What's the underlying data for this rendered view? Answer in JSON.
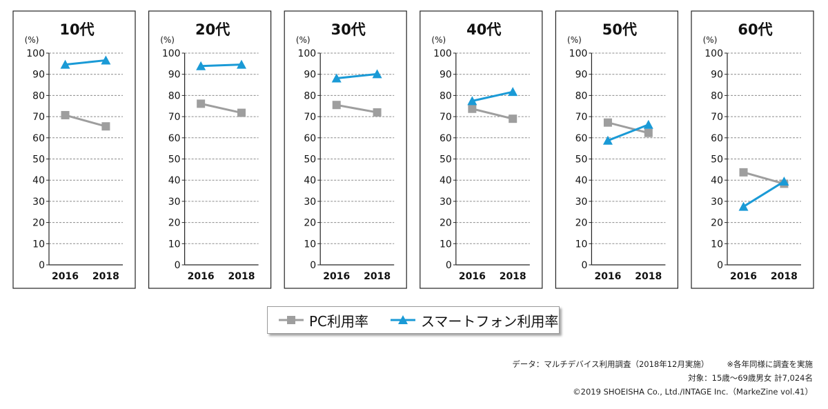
{
  "chart_data": {
    "type": "line",
    "y_unit": "(%)",
    "ylim": [
      0,
      100
    ],
    "yticks": [
      0,
      10,
      20,
      30,
      40,
      50,
      60,
      70,
      80,
      90,
      100
    ],
    "categories": [
      "2016",
      "2018"
    ],
    "grid": true,
    "legend_position": "bottom-center",
    "panels": [
      {
        "title": "10代",
        "series": [
          {
            "name": "PC利用率",
            "values": [
              70.7,
              65.4
            ]
          },
          {
            "name": "スマートフォン利用率",
            "values": [
              94.6,
              96.6
            ]
          }
        ]
      },
      {
        "title": "20代",
        "series": [
          {
            "name": "PC利用率",
            "values": [
              76.1,
              71.8
            ]
          },
          {
            "name": "スマートフォン利用率",
            "values": [
              93.9,
              94.6
            ]
          }
        ]
      },
      {
        "title": "30代",
        "series": [
          {
            "name": "PC利用率",
            "values": [
              75.5,
              72.0
            ]
          },
          {
            "name": "スマートフォン利用率",
            "values": [
              88.1,
              90.1
            ]
          }
        ]
      },
      {
        "title": "40代",
        "series": [
          {
            "name": "PC利用率",
            "values": [
              73.7,
              69.0
            ]
          },
          {
            "name": "スマートフォン利用率",
            "values": [
              77.4,
              81.7
            ]
          }
        ]
      },
      {
        "title": "50代",
        "series": [
          {
            "name": "PC利用率",
            "values": [
              67.2,
              62.3
            ]
          },
          {
            "name": "スマートフォン利用率",
            "values": [
              58.7,
              66.2
            ]
          }
        ]
      },
      {
        "title": "60代",
        "series": [
          {
            "name": "PC利用率",
            "values": [
              43.7,
              38.3
            ]
          },
          {
            "name": "スマートフォン利用率",
            "values": [
              27.5,
              39.4
            ]
          }
        ]
      }
    ]
  },
  "legend": {
    "pc_label": "PC利用率",
    "smartphone_label": "スマートフォン利用率"
  },
  "colors": {
    "pc": "#9e9e9e",
    "smartphone": "#1a9ad6",
    "grid": "#8a8a8a",
    "frame": "#222222"
  },
  "footnotes": {
    "source": "データ：マルチデバイス利用調査（2018年12月実施）",
    "note": "※各年同様に調査を実施",
    "target": "対象：15歳〜69歳男女 計7,024名",
    "copyright": "©2019 SHOEISHA Co., Ltd./INTAGE Inc.（MarkeZine vol.41）"
  }
}
